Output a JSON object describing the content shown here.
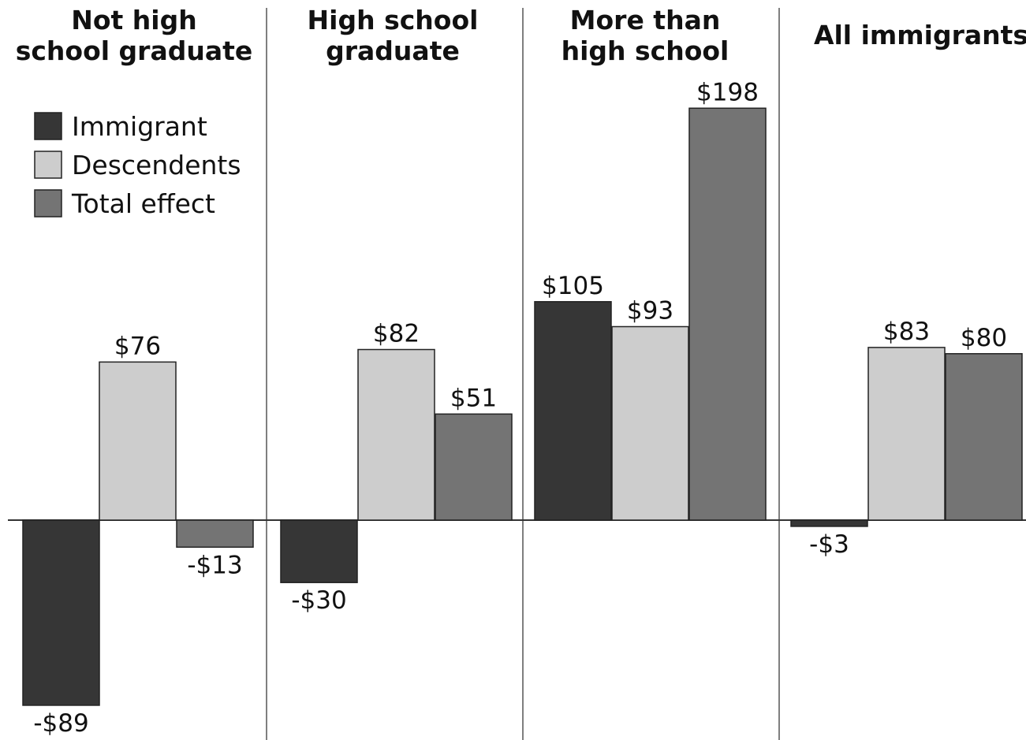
{
  "chart_data": {
    "type": "bar",
    "panels": [
      {
        "title": [
          "Not high",
          "school graduate"
        ],
        "values": [
          -89,
          76,
          -13
        ],
        "labels": [
          "-$89",
          "$76",
          "-$13"
        ]
      },
      {
        "title": [
          "High school",
          "graduate"
        ],
        "values": [
          -30,
          82,
          51
        ],
        "labels": [
          "-$30",
          "$82",
          "$51"
        ]
      },
      {
        "title": [
          "More than",
          "high school"
        ],
        "values": [
          105,
          93,
          198
        ],
        "labels": [
          "$105",
          "$93",
          "$198"
        ]
      },
      {
        "title": [
          "All immigrants"
        ],
        "values": [
          -3,
          83,
          80
        ],
        "labels": [
          "-$3",
          "$83",
          "$80"
        ]
      }
    ],
    "series": [
      {
        "name": "Immigrant",
        "color": "#363636"
      },
      {
        "name": "Descendents",
        "color": "#cdcdcd"
      },
      {
        "name": "Total effect",
        "color": "#747474"
      }
    ],
    "ylim": [
      -95,
      210
    ],
    "legend_position": "top-left",
    "grid": false
  }
}
